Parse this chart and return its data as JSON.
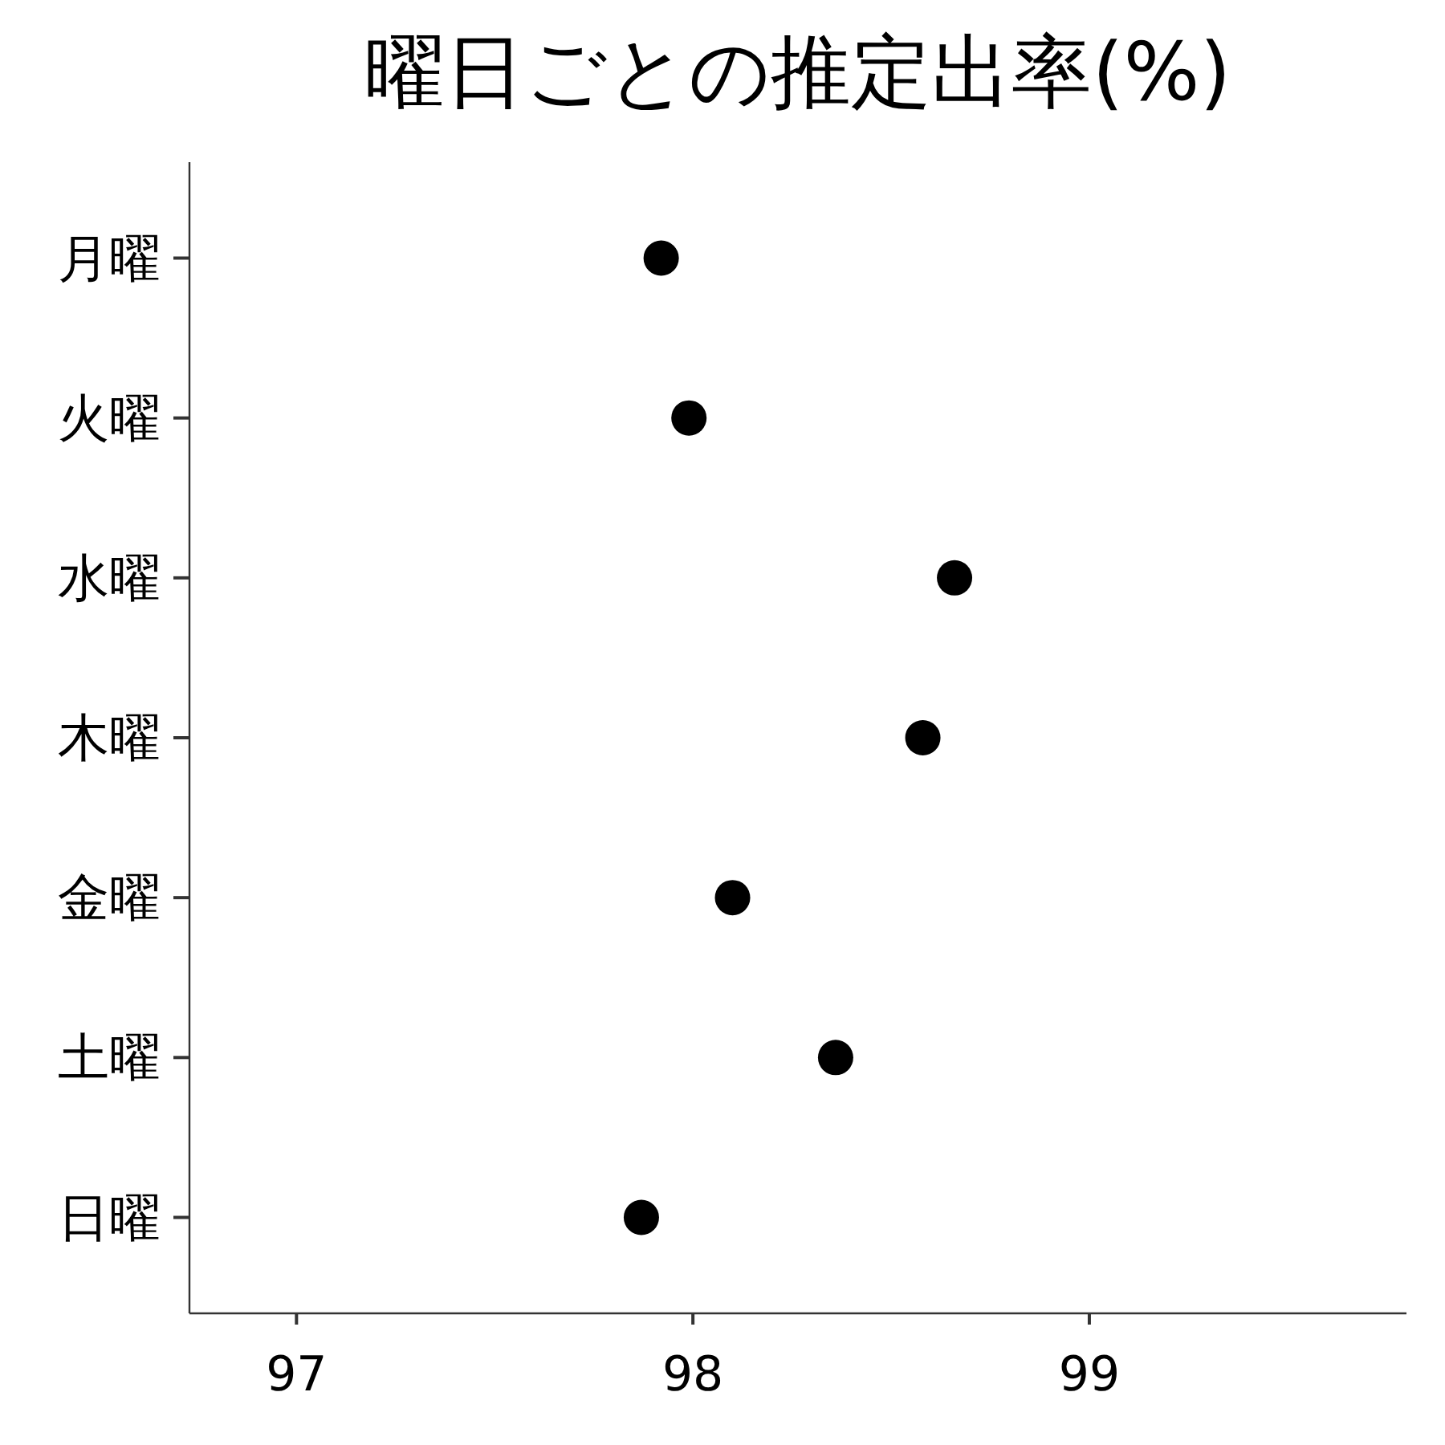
{
  "chart_data": {
    "type": "scatter",
    "title": "曜日ごとの推定出率(%)",
    "orientation": "horizontal",
    "categories": [
      "月曜",
      "火曜",
      "水曜",
      "木曜",
      "金曜",
      "土曜",
      "日曜"
    ],
    "values": [
      97.92,
      97.99,
      98.66,
      98.58,
      98.1,
      98.36,
      97.87
    ],
    "color": "#000000",
    "marker": "circle",
    "xlim": [
      96.73,
      99.8
    ],
    "xticks": [
      97,
      98,
      99
    ],
    "grid": false
  }
}
